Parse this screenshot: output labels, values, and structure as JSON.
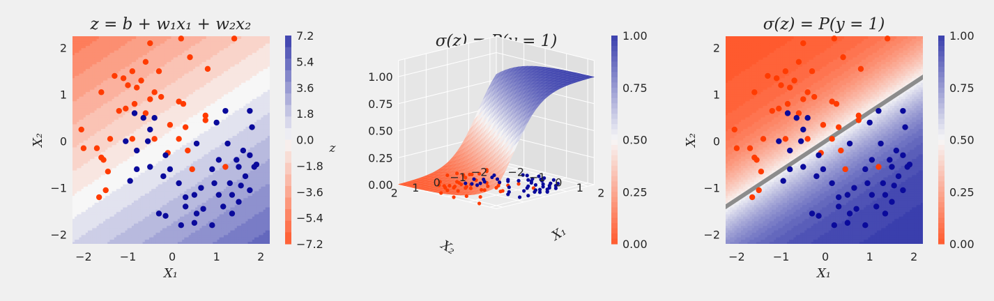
{
  "colors": {
    "background": "#f0f0f0",
    "negative": "#ff5a2e",
    "neutral": "#f7f7f7",
    "positive": "#3a3fad",
    "point_red": "#ff3b00",
    "point_blue": "#0a0a9b",
    "boundary": "#8c8c8c"
  },
  "chart_data": [
    {
      "type": "heatmap",
      "title": "z = b + w₁x₁ + w₂x₂",
      "xlabel": "X₁",
      "ylabel": "X₂",
      "xlim": [
        -2.25,
        2.2
      ],
      "ylim": [
        -2.2,
        2.25
      ],
      "xticks": [
        "−2",
        "−1",
        "0",
        "1",
        "2"
      ],
      "yticks": [
        "−2",
        "−1",
        "0",
        "1",
        "2"
      ],
      "surface": {
        "b": 0.0,
        "w1": 1.0,
        "w2": -1.6
      },
      "colorbar": {
        "label": "z",
        "range": [
          -7.2,
          7.2
        ],
        "ticks": [
          "7.2",
          "5.4",
          "3.6",
          "1.8",
          "0.0",
          "−1.8",
          "−3.6",
          "−5.4",
          "−7.2"
        ]
      },
      "grid": false
    },
    {
      "type": "surface3d",
      "title": "σ(z) = P(y = 1)",
      "xlabel": "X₁",
      "ylabel": "X₂",
      "zticks": [
        "0.00",
        "0.25",
        "0.50",
        "0.75",
        "1.00"
      ],
      "xticks": [
        "−2",
        "−1",
        "0",
        "1",
        "2"
      ],
      "yticks": [
        "2",
        "1",
        "0",
        "−1",
        "−2"
      ],
      "colorbar": {
        "range": [
          0,
          1
        ],
        "ticks": [
          "1.00",
          "0.75",
          "0.50",
          "0.25",
          "0.00"
        ]
      }
    },
    {
      "type": "heatmap",
      "title": "σ(z) = P(y = 1)",
      "xlabel": "X₁",
      "ylabel": "X₂",
      "xlim": [
        -2.25,
        2.2
      ],
      "ylim": [
        -2.2,
        2.25
      ],
      "xticks": [
        "−2",
        "−1",
        "0",
        "1",
        "2"
      ],
      "yticks": [
        "−2",
        "−1",
        "0",
        "1",
        "2"
      ],
      "decision_boundary": {
        "p": 0.5
      },
      "colorbar": {
        "range": [
          0,
          1
        ],
        "ticks": [
          "1.00",
          "0.75",
          "0.50",
          "0.25",
          "0.00"
        ]
      },
      "grid": false
    }
  ],
  "points": {
    "red": [
      [
        0.2,
        2.2
      ],
      [
        1.4,
        2.2
      ],
      [
        -0.5,
        2.1
      ],
      [
        -0.6,
        1.7
      ],
      [
        0.4,
        1.8
      ],
      [
        -0.9,
        1.5
      ],
      [
        -0.3,
        1.5
      ],
      [
        0.8,
        1.55
      ],
      [
        -1.3,
        1.4
      ],
      [
        -1.1,
        1.35
      ],
      [
        -0.7,
        1.3
      ],
      [
        -1.0,
        1.2
      ],
      [
        -0.8,
        1.15
      ],
      [
        -0.4,
        1.05
      ],
      [
        -1.6,
        1.05
      ],
      [
        -0.25,
        0.95
      ],
      [
        -0.5,
        0.9
      ],
      [
        0.15,
        0.85
      ],
      [
        0.25,
        0.8
      ],
      [
        -0.85,
        0.8
      ],
      [
        -1.05,
        0.7
      ],
      [
        -1.2,
        0.65
      ],
      [
        -0.6,
        0.6
      ],
      [
        0.75,
        0.55
      ],
      [
        0.75,
        0.45
      ],
      [
        -0.05,
        0.35
      ],
      [
        0.3,
        0.3
      ],
      [
        -2.05,
        0.25
      ],
      [
        0.15,
        0.05
      ],
      [
        -0.4,
        0.05
      ],
      [
        -0.9,
        0.05
      ],
      [
        -1.4,
        0.05
      ],
      [
        -2.0,
        -0.15
      ],
      [
        -1.7,
        -0.15
      ],
      [
        0.35,
        -0.2
      ],
      [
        -1.6,
        -0.35
      ],
      [
        -1.55,
        -0.4
      ],
      [
        -0.1,
        -0.25
      ],
      [
        1.2,
        -0.55
      ],
      [
        0.45,
        -0.6
      ],
      [
        -1.45,
        -0.65
      ],
      [
        -1.5,
        -1.05
      ],
      [
        -1.65,
        -1.2
      ]
    ],
    "blue": [
      [
        -0.85,
        0.6
      ],
      [
        -0.65,
        0.5
      ],
      [
        1.2,
        0.65
      ],
      [
        1.75,
        0.65
      ],
      [
        -0.4,
        0.5
      ],
      [
        1.0,
        0.4
      ],
      [
        -0.5,
        0.25
      ],
      [
        1.8,
        0.3
      ],
      [
        -0.55,
        0.0
      ],
      [
        -1.05,
        0.0
      ],
      [
        0.55,
        -0.05
      ],
      [
        1.25,
        -0.05
      ],
      [
        -0.8,
        -0.2
      ],
      [
        1.6,
        -0.2
      ],
      [
        -0.15,
        -0.3
      ],
      [
        1.75,
        -0.3
      ],
      [
        1.45,
        -0.4
      ],
      [
        1.05,
        -0.4
      ],
      [
        1.5,
        -0.55
      ],
      [
        1.9,
        -0.5
      ],
      [
        1.85,
        -0.55
      ],
      [
        -0.5,
        -0.55
      ],
      [
        -0.8,
        -0.6
      ],
      [
        0.9,
        -0.6
      ],
      [
        -0.05,
        -0.6
      ],
      [
        -0.2,
        -0.75
      ],
      [
        1.65,
        -0.75
      ],
      [
        0.15,
        -0.9
      ],
      [
        1.3,
        -0.9
      ],
      [
        -0.95,
        -0.85
      ],
      [
        0.95,
        -0.9
      ],
      [
        1.55,
        -0.95
      ],
      [
        1.75,
        -1.05
      ],
      [
        0.65,
        -1.0
      ],
      [
        0.5,
        -1.15
      ],
      [
        0.3,
        -1.2
      ],
      [
        1.35,
        -1.15
      ],
      [
        1.05,
        -1.15
      ],
      [
        1.5,
        -1.3
      ],
      [
        0.3,
        -1.4
      ],
      [
        0.7,
        -1.45
      ],
      [
        1.15,
        -1.4
      ],
      [
        0.55,
        -1.55
      ],
      [
        -0.3,
        -1.55
      ],
      [
        -0.15,
        -1.6
      ],
      [
        1.35,
        -1.55
      ],
      [
        0.2,
        -1.8
      ],
      [
        0.5,
        -1.75
      ],
      [
        0.9,
        -1.8
      ]
    ]
  }
}
